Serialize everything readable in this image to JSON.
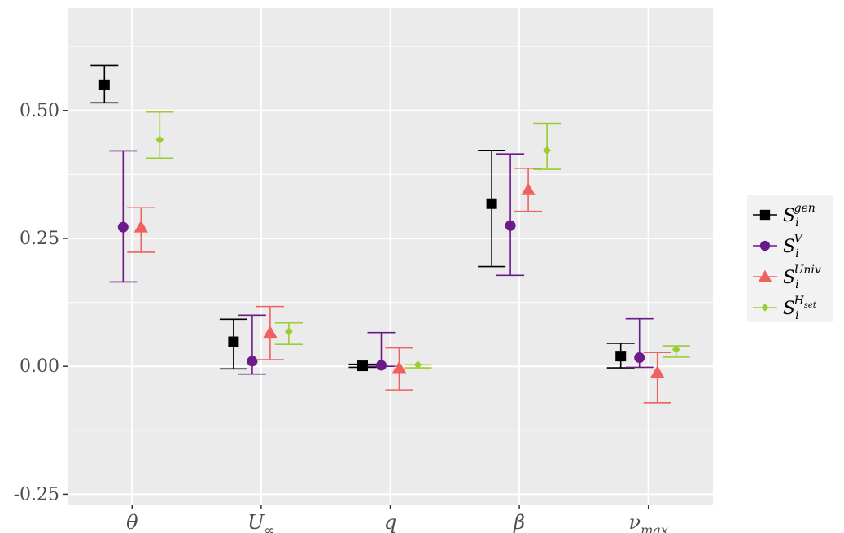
{
  "chart_data": {
    "type": "scatter",
    "subtype": "point-with-errorbars",
    "categories": [
      "θ",
      "U∞",
      "q",
      "β",
      "ν_max"
    ],
    "category_labels": [
      {
        "base": "θ",
        "sub": ""
      },
      {
        "base": "U",
        "sub": "∞"
      },
      {
        "base": "q",
        "sub": ""
      },
      {
        "base": "β",
        "sub": ""
      },
      {
        "base": "ν",
        "sub": "max"
      }
    ],
    "ylim": [
      -0.27,
      0.7
    ],
    "yticks": [
      -0.25,
      0.0,
      0.25,
      0.5
    ],
    "ytick_labels": [
      "-0.25",
      "0.00",
      "0.25",
      "0.50"
    ],
    "grid": true,
    "legend_position": "right",
    "series": [
      {
        "name": "S_i^gen",
        "legend": {
          "base": "S",
          "sub": "i",
          "sup": "gen"
        },
        "marker": "square",
        "color": "#000000",
        "values": [
          0.55,
          0.048,
          0.001,
          0.318,
          0.02
        ],
        "lower": [
          0.515,
          -0.005,
          -0.002,
          0.195,
          -0.003
        ],
        "upper": [
          0.588,
          0.092,
          0.004,
          0.422,
          0.045
        ]
      },
      {
        "name": "S_i^V",
        "legend": {
          "base": "S",
          "sub": "i",
          "sup": "V"
        },
        "marker": "circle",
        "color": "#6a1b87",
        "values": [
          0.272,
          0.01,
          0.002,
          0.275,
          0.017
        ],
        "lower": [
          0.165,
          -0.015,
          0.0,
          0.178,
          -0.002
        ],
        "upper": [
          0.421,
          0.1,
          0.066,
          0.415,
          0.093
        ]
      },
      {
        "name": "S_i^Univ",
        "legend": {
          "base": "S",
          "sub": "i",
          "sup": "Univ"
        },
        "marker": "triangle",
        "color": "#f0605e",
        "values": [
          0.272,
          0.066,
          -0.003,
          0.345,
          -0.012
        ],
        "lower": [
          0.223,
          0.013,
          -0.046,
          0.303,
          -0.071
        ],
        "upper": [
          0.31,
          0.117,
          0.036,
          0.387,
          0.027
        ]
      },
      {
        "name": "S_i^H_set",
        "legend": {
          "base": "S",
          "sub": "i",
          "sup": "H",
          "supsub": "set"
        },
        "marker": "diamond",
        "color": "#9acd32",
        "values": [
          0.443,
          0.068,
          0.003,
          0.422,
          0.033
        ],
        "lower": [
          0.407,
          0.043,
          -0.003,
          0.385,
          0.018
        ],
        "upper": [
          0.497,
          0.085,
          0.003,
          0.475,
          0.04
        ]
      }
    ]
  }
}
